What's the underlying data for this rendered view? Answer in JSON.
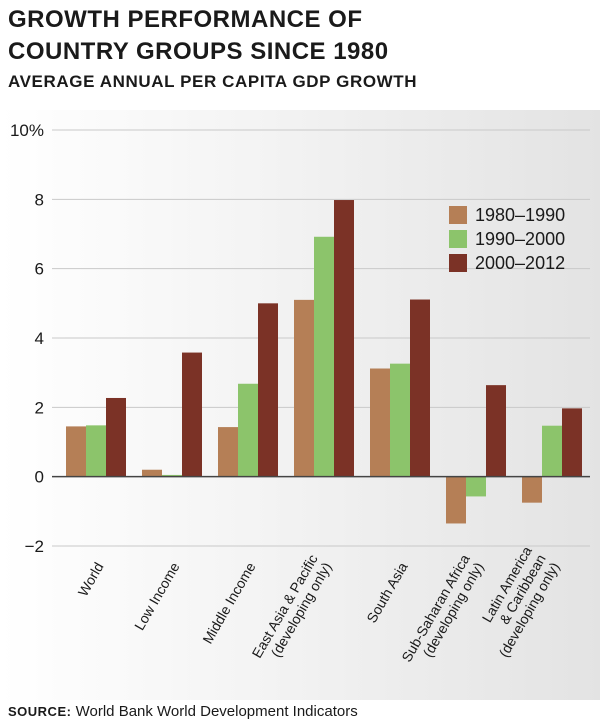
{
  "header": {
    "title_line1": "GROWTH PERFORMANCE OF",
    "title_line2": "COUNTRY GROUPS SINCE 1980",
    "subtitle": "AVERAGE ANNUAL PER CAPITA GDP GROWTH"
  },
  "source": {
    "label": "SOURCE:",
    "text": "World Bank World Development Indicators"
  },
  "colors": {
    "s1980": "#b57f56",
    "s1990": "#8cc46b",
    "s2000": "#7b3226",
    "axis": "#444444",
    "grid": "#c9c9c9"
  },
  "chart_data": {
    "type": "bar",
    "title": "GROWTH PERFORMANCE OF COUNTRY GROUPS SINCE 1980",
    "subtitle": "AVERAGE ANNUAL PER CAPITA GDP GROWTH",
    "ylim": [
      -2,
      10
    ],
    "yticks": [
      -2,
      0,
      2,
      4,
      6,
      8,
      10
    ],
    "ytick_labels": [
      "−2",
      "0",
      "2",
      "4",
      "6",
      "8",
      "10%"
    ],
    "grid": true,
    "legend_position": "top-right",
    "categories": [
      [
        "World"
      ],
      [
        "Low Income"
      ],
      [
        "Middle Income"
      ],
      [
        "East Asia & Pacific",
        "(developing only)"
      ],
      [
        "South Asia"
      ],
      [
        "Sub-Saharan Africa",
        "(developing only)"
      ],
      [
        "Latin America",
        "& Caribbean",
        "(developing only)"
      ]
    ],
    "series": [
      {
        "name": "1980–1990",
        "color": "#b57f56",
        "values": [
          1.45,
          0.2,
          1.43,
          5.1,
          3.12,
          -1.35,
          -0.75
        ]
      },
      {
        "name": "1990–2000",
        "color": "#8cc46b",
        "values": [
          1.48,
          0.05,
          2.68,
          6.92,
          3.26,
          -0.57,
          1.47
        ]
      },
      {
        "name": "2000–2012",
        "color": "#7b3226",
        "values": [
          2.27,
          3.58,
          5.0,
          7.98,
          5.11,
          2.64,
          1.97
        ]
      }
    ]
  }
}
